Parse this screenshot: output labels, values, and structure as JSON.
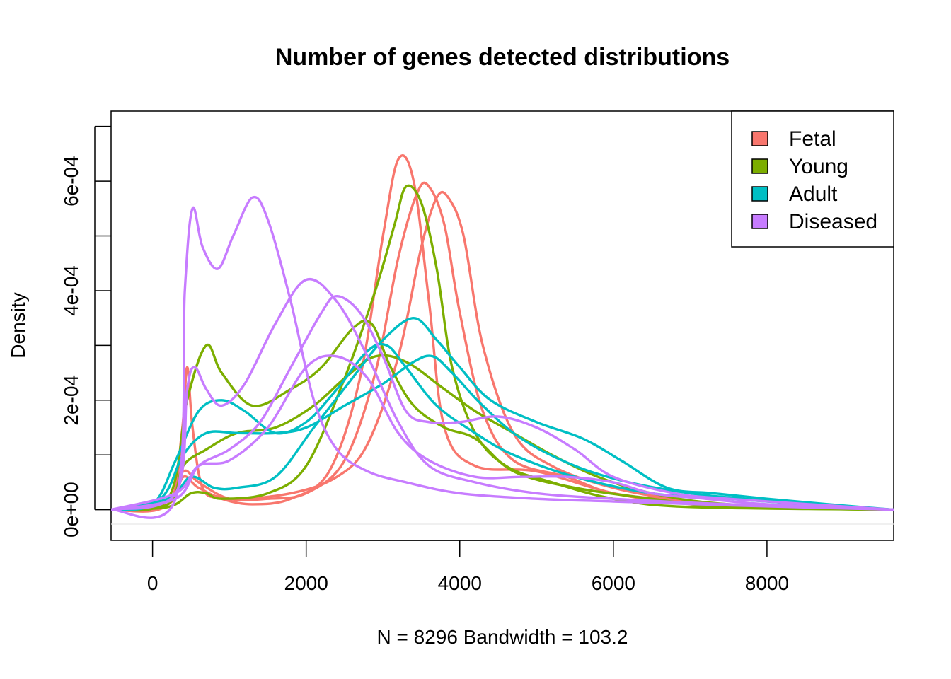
{
  "chart_data": {
    "type": "line",
    "title": "Number of genes detected distributions",
    "xlabel": "N = 8296   Bandwidth = 103.2",
    "ylabel": "Density",
    "xlim": [
      -540,
      9650
    ],
    "ylim": [
      -5.6e-05,
      0.000728
    ],
    "x_ticks": [
      0,
      2000,
      4000,
      6000,
      8000
    ],
    "x_tick_labels": [
      "0",
      "2000",
      "4000",
      "6000",
      "8000"
    ],
    "y_ticks": [
      0,
      0.0001,
      0.0002,
      0.0003,
      0.0004,
      0.0005,
      0.0006,
      0.0007
    ],
    "y_tick_labels": [
      {
        "value": 0,
        "label": "0e+00"
      },
      {
        "value": 0.0002,
        "label": "2e-04"
      },
      {
        "value": 0.0004,
        "label": "4e-04"
      },
      {
        "value": 0.0006,
        "label": "6e-04"
      }
    ],
    "grid": false,
    "legend": {
      "position": "top-right",
      "entries": [
        {
          "label": "Fetal",
          "color": "#F8766D"
        },
        {
          "label": "Young",
          "color": "#7CAE00"
        },
        {
          "label": "Adult",
          "color": "#00BFC4"
        },
        {
          "label": "Diseased",
          "color": "#C77CFF"
        }
      ]
    },
    "series": [
      {
        "group": "Fetal",
        "color": "#F8766D",
        "points": [
          [
            -540,
            0
          ],
          [
            200,
            1e-05
          ],
          [
            380,
            0.00014
          ],
          [
            450,
            0.00026
          ],
          [
            520,
            0.00015
          ],
          [
            650,
            4e-05
          ],
          [
            900,
            2e-05
          ],
          [
            1300,
            1e-05
          ],
          [
            1800,
            2e-05
          ],
          [
            2300,
            7e-05
          ],
          [
            2700,
            0.00024
          ],
          [
            3000,
            0.0005
          ],
          [
            3200,
            0.00064
          ],
          [
            3400,
            0.0006
          ],
          [
            3600,
            0.00038
          ],
          [
            3800,
            0.00015
          ],
          [
            4200,
            8e-05
          ],
          [
            5000,
            7e-05
          ],
          [
            6000,
            3e-05
          ],
          [
            7000,
            1e-05
          ],
          [
            8000,
            5e-06
          ],
          [
            9650,
            0
          ]
        ]
      },
      {
        "group": "Fetal",
        "color": "#F8766D",
        "points": [
          [
            -540,
            0
          ],
          [
            200,
            1e-05
          ],
          [
            400,
            7e-05
          ],
          [
            600,
            5e-05
          ],
          [
            1000,
            2e-05
          ],
          [
            1500,
            2e-05
          ],
          [
            2000,
            3e-05
          ],
          [
            2500,
            9e-05
          ],
          [
            2900,
            0.00025
          ],
          [
            3200,
            0.00046
          ],
          [
            3450,
            0.00058
          ],
          [
            3600,
            0.00059
          ],
          [
            3800,
            0.00052
          ],
          [
            4000,
            0.00036
          ],
          [
            4300,
            0.00018
          ],
          [
            4700,
            9e-05
          ],
          [
            5400,
            6e-05
          ],
          [
            6000,
            3e-05
          ],
          [
            7000,
            1.5e-05
          ],
          [
            8000,
            5e-06
          ],
          [
            9650,
            0
          ]
        ]
      },
      {
        "group": "Fetal",
        "color": "#F8766D",
        "points": [
          [
            -540,
            0
          ],
          [
            200,
            1e-05
          ],
          [
            400,
            6e-05
          ],
          [
            600,
            4e-05
          ],
          [
            1000,
            2e-05
          ],
          [
            1800,
            3e-05
          ],
          [
            2400,
            6e-05
          ],
          [
            2800,
            0.00012
          ],
          [
            3200,
            0.00028
          ],
          [
            3500,
            0.00048
          ],
          [
            3700,
            0.00057
          ],
          [
            3850,
            0.00057
          ],
          [
            4050,
            0.0005
          ],
          [
            4300,
            0.0003
          ],
          [
            4700,
            0.00014
          ],
          [
            5200,
            8e-05
          ],
          [
            6000,
            4e-05
          ],
          [
            7000,
            1.5e-05
          ],
          [
            8000,
            5e-06
          ],
          [
            9650,
            0
          ]
        ]
      },
      {
        "group": "Young",
        "color": "#7CAE00",
        "points": [
          [
            -540,
            0
          ],
          [
            200,
            2e-05
          ],
          [
            450,
            0.0002
          ],
          [
            700,
            0.0003
          ],
          [
            900,
            0.00025
          ],
          [
            1300,
            0.00019
          ],
          [
            1800,
            0.00022
          ],
          [
            2200,
            0.00026
          ],
          [
            2600,
            0.00033
          ],
          [
            2850,
            0.00034
          ],
          [
            3100,
            0.00026
          ],
          [
            3400,
            0.00019
          ],
          [
            3800,
            0.00015
          ],
          [
            4200,
            0.00013
          ],
          [
            4700,
            7e-05
          ],
          [
            5500,
            4e-05
          ],
          [
            6500,
            2e-05
          ],
          [
            7500,
            5e-06
          ],
          [
            9650,
            0
          ]
        ]
      },
      {
        "group": "Young",
        "color": "#7CAE00",
        "points": [
          [
            -540,
            0
          ],
          [
            200,
            1e-05
          ],
          [
            400,
            8e-05
          ],
          [
            700,
            0.00011
          ],
          [
            1100,
            0.00014
          ],
          [
            1600,
            0.00015
          ],
          [
            2100,
            0.00019
          ],
          [
            2500,
            0.00024
          ],
          [
            2900,
            0.00028
          ],
          [
            3300,
            0.00027
          ],
          [
            3800,
            0.00022
          ],
          [
            4200,
            0.00018
          ],
          [
            4700,
            0.00014
          ],
          [
            5200,
            0.0001
          ],
          [
            5800,
            6e-05
          ],
          [
            6500,
            3e-05
          ],
          [
            7500,
            1e-05
          ],
          [
            9650,
            0
          ]
        ]
      },
      {
        "group": "Young",
        "color": "#7CAE00",
        "points": [
          [
            -540,
            0
          ],
          [
            200,
            5e-06
          ],
          [
            500,
            3e-05
          ],
          [
            700,
            3e-05
          ],
          [
            900,
            2e-05
          ],
          [
            1500,
            3e-05
          ],
          [
            2000,
            8e-05
          ],
          [
            2500,
            0.00024
          ],
          [
            2900,
            0.0004
          ],
          [
            3150,
            0.00052
          ],
          [
            3300,
            0.00059
          ],
          [
            3500,
            0.00056
          ],
          [
            3700,
            0.00044
          ],
          [
            3900,
            0.00026
          ],
          [
            4200,
            0.00014
          ],
          [
            4600,
            8e-05
          ],
          [
            5200,
            5e-05
          ],
          [
            6000,
            2e-05
          ],
          [
            7000,
            5e-06
          ],
          [
            9650,
            0
          ]
        ]
      },
      {
        "group": "Adult",
        "color": "#00BFC4",
        "points": [
          [
            -540,
            0
          ],
          [
            0,
            1e-05
          ],
          [
            300,
            9e-05
          ],
          [
            600,
            0.00018
          ],
          [
            900,
            0.0002
          ],
          [
            1200,
            0.00018
          ],
          [
            1600,
            0.00014
          ],
          [
            2000,
            0.00016
          ],
          [
            2400,
            0.00022
          ],
          [
            2800,
            0.00029
          ],
          [
            3050,
            0.0003
          ],
          [
            3300,
            0.00026
          ],
          [
            3700,
            0.00019
          ],
          [
            4200,
            0.00014
          ],
          [
            4700,
            0.0001
          ],
          [
            5500,
            6e-05
          ],
          [
            6500,
            3e-05
          ],
          [
            7500,
            2e-05
          ],
          [
            8500,
            1e-05
          ],
          [
            9650,
            0
          ]
        ]
      },
      {
        "group": "Adult",
        "color": "#00BFC4",
        "points": [
          [
            -540,
            0
          ],
          [
            100,
            2e-05
          ],
          [
            400,
            0.0001
          ],
          [
            700,
            0.00014
          ],
          [
            1100,
            0.00014
          ],
          [
            1600,
            0.00014
          ],
          [
            2000,
            0.00015
          ],
          [
            2500,
            0.00019
          ],
          [
            3000,
            0.00023
          ],
          [
            3400,
            0.00027
          ],
          [
            3650,
            0.00028
          ],
          [
            3900,
            0.00025
          ],
          [
            4300,
            0.00019
          ],
          [
            4800,
            0.00013
          ],
          [
            5500,
            8e-05
          ],
          [
            6200,
            5e-05
          ],
          [
            7000,
            3e-05
          ],
          [
            7700,
            2e-05
          ],
          [
            8500,
            1e-05
          ],
          [
            9650,
            0
          ]
        ]
      },
      {
        "group": "Adult",
        "color": "#00BFC4",
        "points": [
          [
            -540,
            0
          ],
          [
            200,
            2e-05
          ],
          [
            500,
            6e-05
          ],
          [
            800,
            4e-05
          ],
          [
            1100,
            4e-05
          ],
          [
            1600,
            6e-05
          ],
          [
            2100,
            0.00015
          ],
          [
            2600,
            0.00024
          ],
          [
            3000,
            0.00031
          ],
          [
            3400,
            0.00035
          ],
          [
            3700,
            0.00031
          ],
          [
            4000,
            0.00026
          ],
          [
            4400,
            0.0002
          ],
          [
            5000,
            0.00016
          ],
          [
            5600,
            0.00013
          ],
          [
            6100,
            9e-05
          ],
          [
            6700,
            4e-05
          ],
          [
            7300,
            3e-05
          ],
          [
            8000,
            2e-05
          ],
          [
            8800,
            1e-05
          ],
          [
            9650,
            0
          ]
        ]
      },
      {
        "group": "Diseased",
        "color": "#C77CFF",
        "points": [
          [
            -540,
            0
          ],
          [
            300,
            2e-05
          ],
          [
            420,
            0.0004
          ],
          [
            520,
            0.00055
          ],
          [
            650,
            0.00048
          ],
          [
            850,
            0.00044
          ],
          [
            1050,
            0.0005
          ],
          [
            1300,
            0.00057
          ],
          [
            1500,
            0.00053
          ],
          [
            1800,
            0.00038
          ],
          [
            2100,
            0.0002
          ],
          [
            2400,
            0.00011
          ],
          [
            2800,
            7e-05
          ],
          [
            3300,
            5e-05
          ],
          [
            4000,
            3e-05
          ],
          [
            5000,
            2e-05
          ],
          [
            6000,
            1.5e-05
          ],
          [
            7500,
            8e-06
          ],
          [
            9650,
            0
          ]
        ]
      },
      {
        "group": "Diseased",
        "color": "#C77CFF",
        "points": [
          [
            -540,
            0
          ],
          [
            300,
            3e-05
          ],
          [
            450,
            0.00022
          ],
          [
            550,
            0.00026
          ],
          [
            700,
            0.00022
          ],
          [
            900,
            0.00019
          ],
          [
            1200,
            0.00023
          ],
          [
            1600,
            0.00034
          ],
          [
            2000,
            0.00042
          ],
          [
            2400,
            0.00038
          ],
          [
            2800,
            0.00028
          ],
          [
            3200,
            0.00016
          ],
          [
            3600,
            8e-05
          ],
          [
            4200,
            5e-05
          ],
          [
            5000,
            3e-05
          ],
          [
            6000,
            2e-05
          ],
          [
            7500,
            1e-05
          ],
          [
            9650,
            0
          ]
        ]
      },
      {
        "group": "Diseased",
        "color": "#C77CFF",
        "points": [
          [
            -540,
            0
          ],
          [
            300,
            2e-05
          ],
          [
            600,
            8e-05
          ],
          [
            1000,
            0.00011
          ],
          [
            1400,
            0.00016
          ],
          [
            1800,
            0.00026
          ],
          [
            2200,
            0.00036
          ],
          [
            2400,
            0.00039
          ],
          [
            2700,
            0.00036
          ],
          [
            3000,
            0.00028
          ],
          [
            3300,
            0.00018
          ],
          [
            3600,
            0.00016
          ],
          [
            4000,
            0.00016
          ],
          [
            4500,
            0.00017
          ],
          [
            5000,
            0.00015
          ],
          [
            5500,
            0.00011
          ],
          [
            6000,
            6e-05
          ],
          [
            6800,
            3e-05
          ],
          [
            7500,
            2e-05
          ],
          [
            9650,
            0
          ]
        ]
      },
      {
        "group": "Diseased",
        "color": "#C77CFF",
        "points": [
          [
            -540,
            0
          ],
          [
            300,
            3e-05
          ],
          [
            600,
            8e-05
          ],
          [
            1000,
            9e-05
          ],
          [
            1500,
            0.00015
          ],
          [
            2000,
            0.00026
          ],
          [
            2400,
            0.00028
          ],
          [
            2800,
            0.00024
          ],
          [
            3200,
            0.00014
          ],
          [
            3600,
            9e-05
          ],
          [
            4200,
            6e-05
          ],
          [
            4800,
            6e-05
          ],
          [
            5400,
            6e-05
          ],
          [
            6000,
            5e-05
          ],
          [
            6500,
            3e-05
          ],
          [
            7200,
            2e-05
          ],
          [
            8000,
            1e-05
          ],
          [
            9650,
            0
          ]
        ]
      }
    ]
  }
}
